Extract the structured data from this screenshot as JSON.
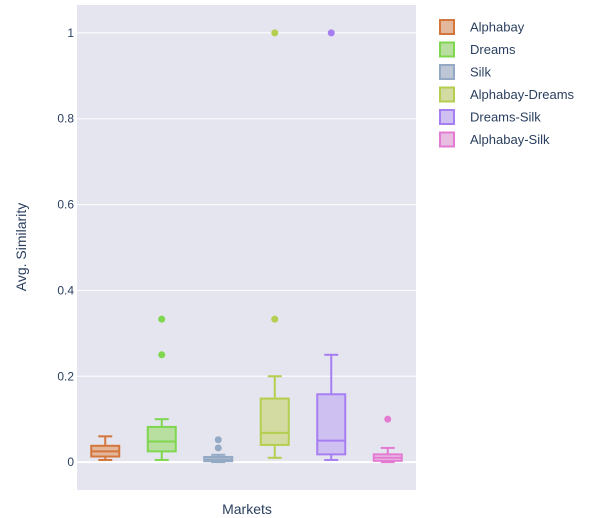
{
  "chart_data": {
    "type": "box",
    "xlabel": "Markets",
    "ylabel": "Avg. Similarity",
    "ylim": [
      -0.065,
      1.065
    ],
    "yticks": [
      0,
      0.2,
      0.4,
      0.6,
      0.8,
      1
    ],
    "ytick_labels": [
      "0",
      "0.2",
      "0.4",
      "0.6",
      "0.8",
      "1"
    ],
    "grid": true,
    "legend_position": "right",
    "series": [
      {
        "name": "Alphabay",
        "color": "#d4763b",
        "fill": "#e3b79c",
        "lower_whisker": 0.005,
        "q1": 0.013,
        "median": 0.025,
        "q3": 0.038,
        "upper_whisker": 0.06,
        "outliers": []
      },
      {
        "name": "Dreams",
        "color": "#7fd64f",
        "fill": "#b9dfa0",
        "lower_whisker": 0.005,
        "q1": 0.025,
        "median": 0.048,
        "q3": 0.082,
        "upper_whisker": 0.1,
        "outliers": [
          0.25,
          0.333
        ]
      },
      {
        "name": "Silk",
        "color": "#93a9c4",
        "fill": "#bcc6d5",
        "lower_whisker": 0.0,
        "q1": 0.002,
        "median": 0.006,
        "q3": 0.012,
        "upper_whisker": 0.017,
        "outliers": [
          0.033,
          0.052
        ]
      },
      {
        "name": "Alphabay-Dreams",
        "color": "#b4ce50",
        "fill": "#d3dba3",
        "lower_whisker": 0.01,
        "q1": 0.04,
        "median": 0.068,
        "q3": 0.148,
        "upper_whisker": 0.2,
        "outliers": [
          0.333,
          1.0
        ]
      },
      {
        "name": "Dreams-Silk",
        "color": "#a77ef2",
        "fill": "#cec1f1",
        "lower_whisker": 0.005,
        "q1": 0.018,
        "median": 0.05,
        "q3": 0.158,
        "upper_whisker": 0.25,
        "outliers": [
          1.0
        ]
      },
      {
        "name": "Alphabay-Silk",
        "color": "#e47bd2",
        "fill": "#e9bde2",
        "lower_whisker": 0.0,
        "q1": 0.003,
        "median": 0.01,
        "q3": 0.018,
        "upper_whisker": 0.033,
        "outliers": [
          0.1
        ]
      }
    ]
  }
}
